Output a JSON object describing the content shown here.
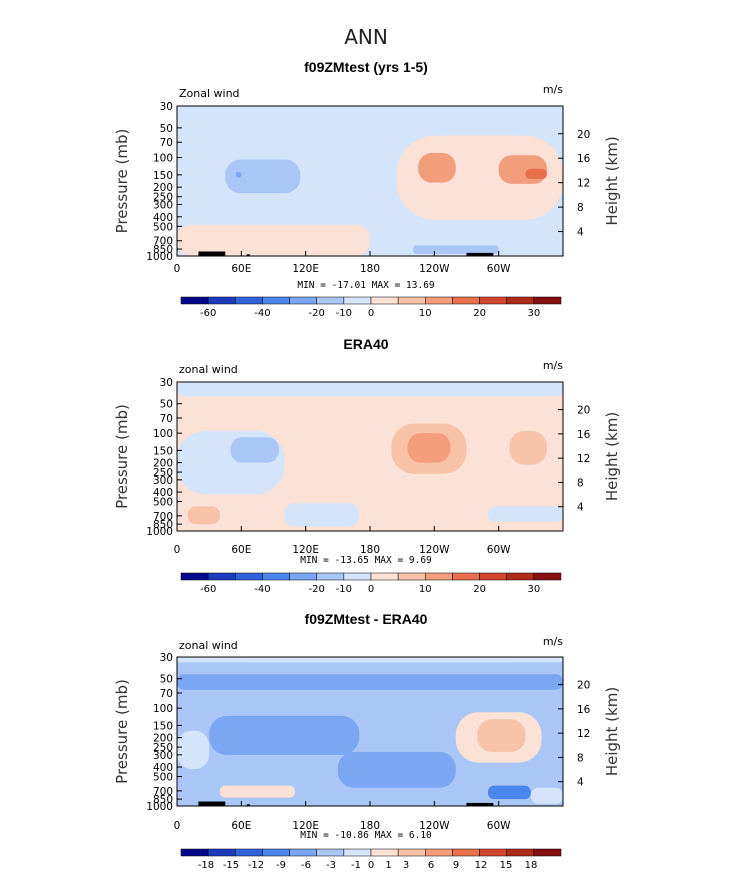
{
  "main_title": "ANN",
  "colors": {
    "cmap": [
      "#08088c",
      "#1c3cbe",
      "#2f63dc",
      "#4b86ec",
      "#7aa6f2",
      "#a9c6f6",
      "#d3e4fb",
      "#fbe1d6",
      "#f8c2a6",
      "#f29e7c",
      "#e8704c",
      "#d2462e",
      "#b02a1c",
      "#861010"
    ],
    "land": "#000000"
  },
  "chart_data": [
    {
      "type": "heatmap",
      "title": "f09ZMtest (yrs 1-5)",
      "left_label": "Zonal wind",
      "right_label": "m/s",
      "xlabel": "",
      "ylabel": "Pressure (mb)",
      "y2label": "Height (km)",
      "xticks": [
        "0",
        "60E",
        "120E",
        "180",
        "120W",
        "60W"
      ],
      "yticks": [
        "30",
        "50",
        "70",
        "100",
        "150",
        "200",
        "250",
        "300",
        "400",
        "500",
        "700",
        "850",
        "1000"
      ],
      "y2ticks": [
        "20",
        "16",
        "12",
        "8",
        "4"
      ],
      "stats": "MIN = -17.01   MAX =  13.69",
      "levels": [
        "-60",
        "-40",
        "-20",
        "-10",
        "0",
        "10",
        "20",
        "30"
      ],
      "background_class": 6,
      "blobs": [
        {
          "lon": [
            205,
            360
          ],
          "p": [
            60,
            430
          ],
          "cls": 7
        },
        {
          "lon": [
            0,
            180
          ],
          "p": [
            480,
            1000
          ],
          "cls": 7
        },
        {
          "lon": [
            225,
            260
          ],
          "p": [
            90,
            180
          ],
          "cls": 9
        },
        {
          "lon": [
            300,
            345
          ],
          "p": [
            95,
            185
          ],
          "cls": 9
        },
        {
          "lon": [
            325,
            345
          ],
          "p": [
            130,
            165
          ],
          "cls": 10
        },
        {
          "lon": [
            45,
            115
          ],
          "p": [
            105,
            230
          ],
          "cls": 5
        },
        {
          "lon": [
            55,
            60
          ],
          "p": [
            140,
            160
          ],
          "cls": 4
        },
        {
          "lon": [
            220,
            300
          ],
          "p": [
            780,
            950
          ],
          "cls": 5
        }
      ]
    },
    {
      "type": "heatmap",
      "title": "ERA40",
      "left_label": "zonal wind",
      "right_label": "m/s",
      "xlabel": "",
      "ylabel": "Pressure (mb)",
      "y2label": "Height (km)",
      "xticks": [
        "0",
        "60E",
        "120E",
        "180",
        "120W",
        "60W"
      ],
      "yticks": [
        "30",
        "50",
        "70",
        "100",
        "150",
        "200",
        "250",
        "300",
        "400",
        "500",
        "700",
        "850",
        "1000"
      ],
      "y2ticks": [
        "20",
        "16",
        "12",
        "8",
        "4"
      ],
      "stats": "MIN = -13.65   MAX =   9.69",
      "levels": [
        "-60",
        "-40",
        "-20",
        "-10",
        "0",
        "10",
        "20",
        "30"
      ],
      "background_class": 7,
      "blobs": [
        {
          "lon": [
            0,
            360
          ],
          "p": [
            30,
            42
          ],
          "cls": 6
        },
        {
          "lon": [
            0,
            100
          ],
          "p": [
            95,
            420
          ],
          "cls": 6
        },
        {
          "lon": [
            50,
            95
          ],
          "p": [
            110,
            200
          ],
          "cls": 5
        },
        {
          "lon": [
            200,
            270
          ],
          "p": [
            80,
            260
          ],
          "cls": 8
        },
        {
          "lon": [
            215,
            255
          ],
          "p": [
            100,
            200
          ],
          "cls": 9
        },
        {
          "lon": [
            310,
            345
          ],
          "p": [
            95,
            210
          ],
          "cls": 8
        },
        {
          "lon": [
            290,
            360
          ],
          "p": [
            560,
            800
          ],
          "cls": 6
        },
        {
          "lon": [
            100,
            170
          ],
          "p": [
            520,
            900
          ],
          "cls": 6
        },
        {
          "lon": [
            10,
            40
          ],
          "p": [
            560,
            850
          ],
          "cls": 8
        }
      ]
    },
    {
      "type": "heatmap",
      "title": "f09ZMtest - ERA40",
      "left_label": "zonal wind",
      "right_label": "m/s",
      "xlabel": "",
      "ylabel": "Pressure (mb)",
      "y2label": "Height (km)",
      "xticks": [
        "0",
        "60E",
        "120E",
        "180",
        "120W",
        "60W"
      ],
      "yticks": [
        "30",
        "50",
        "70",
        "100",
        "150",
        "200",
        "250",
        "300",
        "400",
        "500",
        "700",
        "850",
        "1000"
      ],
      "y2ticks": [
        "20",
        "16",
        "12",
        "8",
        "4"
      ],
      "stats": "MIN = -10.86   MAX =   6.10",
      "levels": [
        "-18",
        "-15",
        "-12",
        "-9",
        "-6",
        "-3",
        "-1",
        "0",
        "1",
        "3",
        "6",
        "9",
        "12",
        "15",
        "18"
      ],
      "background_class": 5,
      "blobs": [
        {
          "lon": [
            0,
            360
          ],
          "p": [
            30,
            34
          ],
          "cls": 6
        },
        {
          "lon": [
            0,
            360
          ],
          "p": [
            45,
            65
          ],
          "cls": 4
        },
        {
          "lon": [
            30,
            170
          ],
          "p": [
            120,
            300
          ],
          "cls": 4
        },
        {
          "lon": [
            150,
            260
          ],
          "p": [
            280,
            650
          ],
          "cls": 4
        },
        {
          "lon": [
            260,
            340
          ],
          "p": [
            110,
            360
          ],
          "cls": 7
        },
        {
          "lon": [
            280,
            325
          ],
          "p": [
            130,
            280
          ],
          "cls": 8
        },
        {
          "lon": [
            0,
            30
          ],
          "p": [
            170,
            420
          ],
          "cls": 6
        },
        {
          "lon": [
            40,
            110
          ],
          "p": [
            620,
            820
          ],
          "cls": 7
        },
        {
          "lon": [
            290,
            330
          ],
          "p": [
            620,
            850
          ],
          "cls": 3
        },
        {
          "lon": [
            330,
            360
          ],
          "p": [
            650,
            950
          ],
          "cls": 6
        }
      ]
    }
  ]
}
